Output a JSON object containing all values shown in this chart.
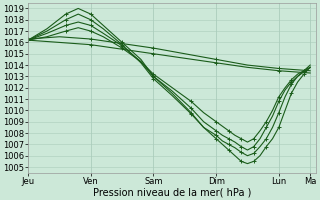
{
  "title": "",
  "xlabel": "Pression niveau de la mer( hPa )",
  "ylabel": "",
  "bg_color": "#cce8d8",
  "plot_bg_color": "#cce8d8",
  "grid_color": "#aaccbb",
  "line_color": "#1a5c1a",
  "ylim": [
    1004.5,
    1019.5
  ],
  "yticks": [
    1005,
    1006,
    1007,
    1008,
    1009,
    1010,
    1011,
    1012,
    1013,
    1014,
    1015,
    1016,
    1017,
    1018,
    1019
  ],
  "xtick_labels": [
    "Jeu",
    "Ven",
    "Sam",
    "Dim",
    "Lun",
    "Ma"
  ],
  "xtick_positions": [
    0,
    1,
    2,
    3,
    4,
    4.5
  ],
  "xlim": [
    0,
    4.6
  ],
  "series": {
    "x_flat1": [
      0.0,
      0.5,
      1.0,
      1.5,
      2.0,
      2.5,
      3.0,
      3.5,
      4.0,
      4.5
    ],
    "y_flat1": [
      1016.2,
      1016.0,
      1015.8,
      1015.4,
      1015.0,
      1014.6,
      1014.2,
      1013.8,
      1013.5,
      1013.3
    ],
    "x_flat2": [
      0.0,
      0.5,
      1.0,
      1.5,
      2.0,
      2.5,
      3.0,
      3.5,
      4.0,
      4.5
    ],
    "y_flat2": [
      1016.3,
      1016.5,
      1016.3,
      1015.9,
      1015.5,
      1015.0,
      1014.5,
      1014.0,
      1013.7,
      1013.5
    ],
    "x_steep1": [
      0.0,
      0.3,
      0.6,
      0.8,
      1.0,
      1.2,
      1.5,
      1.8,
      2.0,
      2.3,
      2.6,
      2.8,
      3.0,
      3.1,
      3.2,
      3.3,
      3.4,
      3.5,
      3.6,
      3.7,
      3.8,
      3.9,
      4.0,
      4.1,
      4.2,
      4.3,
      4.4,
      4.5
    ],
    "y_steep1": [
      1016.2,
      1017.2,
      1018.5,
      1019.0,
      1018.5,
      1017.5,
      1016.0,
      1014.5,
      1013.0,
      1011.5,
      1009.8,
      1008.5,
      1007.5,
      1007.0,
      1006.5,
      1006.0,
      1005.5,
      1005.3,
      1005.5,
      1006.0,
      1006.8,
      1007.5,
      1008.5,
      1010.0,
      1011.5,
      1012.5,
      1013.2,
      1013.8
    ],
    "x_steep2": [
      0.0,
      0.3,
      0.6,
      0.8,
      1.0,
      1.2,
      1.5,
      1.8,
      2.0,
      2.3,
      2.6,
      2.8,
      3.0,
      3.1,
      3.2,
      3.3,
      3.4,
      3.5,
      3.6,
      3.7,
      3.8,
      3.9,
      4.0,
      4.1,
      4.2,
      4.3,
      4.4,
      4.5
    ],
    "y_steep2": [
      1016.2,
      1017.0,
      1018.0,
      1018.5,
      1018.0,
      1017.2,
      1015.8,
      1014.2,
      1012.8,
      1011.3,
      1009.7,
      1008.5,
      1007.8,
      1007.3,
      1007.0,
      1006.7,
      1006.3,
      1006.0,
      1006.2,
      1006.8,
      1007.5,
      1008.5,
      1009.8,
      1011.2,
      1012.3,
      1013.0,
      1013.5,
      1014.0
    ],
    "x_steep3": [
      0.0,
      0.3,
      0.6,
      0.8,
      1.0,
      1.2,
      1.5,
      1.8,
      2.0,
      2.3,
      2.6,
      2.8,
      3.0,
      3.1,
      3.2,
      3.3,
      3.4,
      3.5,
      3.6,
      3.7,
      3.8,
      3.9,
      4.0,
      4.1,
      4.2,
      4.3,
      4.4,
      4.5
    ],
    "y_steep3": [
      1016.2,
      1016.8,
      1017.5,
      1017.8,
      1017.5,
      1016.8,
      1015.7,
      1014.3,
      1013.0,
      1011.7,
      1010.2,
      1009.0,
      1008.2,
      1007.8,
      1007.5,
      1007.2,
      1006.8,
      1006.5,
      1006.8,
      1007.5,
      1008.5,
      1009.5,
      1010.8,
      1011.8,
      1012.5,
      1013.0,
      1013.4,
      1013.8
    ],
    "x_steep4": [
      0.0,
      0.3,
      0.6,
      0.8,
      1.0,
      1.2,
      1.5,
      1.8,
      2.0,
      2.3,
      2.6,
      2.8,
      3.0,
      3.1,
      3.2,
      3.3,
      3.4,
      3.5,
      3.6,
      3.7,
      3.8,
      3.9,
      4.0,
      4.1,
      4.2,
      4.3,
      4.4,
      4.5
    ],
    "y_steep4": [
      1016.2,
      1016.5,
      1017.0,
      1017.3,
      1017.0,
      1016.5,
      1015.5,
      1014.3,
      1013.2,
      1012.0,
      1010.8,
      1009.8,
      1009.0,
      1008.6,
      1008.2,
      1007.8,
      1007.5,
      1007.2,
      1007.5,
      1008.2,
      1009.0,
      1010.0,
      1011.2,
      1012.0,
      1012.7,
      1013.2,
      1013.5,
      1013.8
    ]
  },
  "marker": "+",
  "marker_every": 2,
  "marker_size": 3,
  "linewidth": 0.8,
  "fontsize_ticks": 6,
  "fontsize_xlabel": 7
}
